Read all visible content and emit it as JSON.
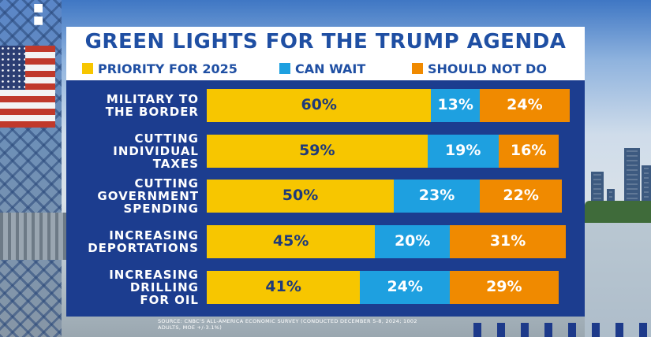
{
  "chart_data": {
    "type": "bar",
    "orientation": "horizontal",
    "stacked": true,
    "title": "GREEN LIGHTS FOR THE TRUMP AGENDA",
    "categories": [
      [
        "MILITARY TO",
        "THE BORDER"
      ],
      [
        "CUTTING",
        "INDIVIDUAL",
        "TAXES"
      ],
      [
        "CUTTING",
        "GOVERNMENT",
        "SPENDING"
      ],
      [
        "INCREASING",
        "DEPORTATIONS"
      ],
      [
        "INCREASING",
        "DRILLING",
        "FOR OIL"
      ]
    ],
    "series": [
      {
        "name": "PRIORITY FOR 2025",
        "color": "#f7c600",
        "text_color": "#1f3a7a",
        "values": [
          60,
          59,
          50,
          45,
          41
        ]
      },
      {
        "name": "CAN WAIT",
        "color": "#1ea0e0",
        "text_color": "#ffffff",
        "values": [
          13,
          19,
          23,
          20,
          24
        ]
      },
      {
        "name": "SHOULD NOT DO",
        "color": "#f08a00",
        "text_color": "#ffffff",
        "values": [
          24,
          16,
          22,
          31,
          29
        ]
      }
    ],
    "value_suffix": "%",
    "xlim": [
      0,
      100
    ],
    "legend": "top"
  },
  "source": "SOURCE: CNBC'S ALL-AMERICA ECONOMIC SURVEY (CONDUCTED DECEMBER 5-8, 2024; 1002 ADULTS, MOE +/-3.1%)",
  "colors": {
    "panel_blue": "#1c3d8f",
    "title_blue": "#1f4fa3"
  }
}
